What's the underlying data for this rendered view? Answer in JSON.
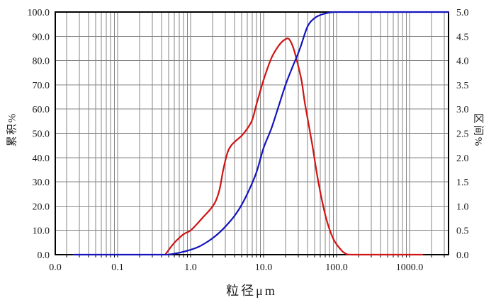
{
  "chart_data": {
    "type": "line",
    "title": "",
    "xlabel": "粒径μm",
    "ylabel_left": "累积%",
    "ylabel_right": "区间%",
    "x_scale": "log",
    "x_range": [
      0.014,
      3400
    ],
    "x_ticks": [
      {
        "label": "0.0",
        "v": 0.014
      },
      {
        "label": "0.1",
        "v": 0.1
      },
      {
        "label": "1.0",
        "v": 1
      },
      {
        "label": "10.0",
        "v": 10
      },
      {
        "label": "100.0",
        "v": 100
      },
      {
        "label": "1000.0",
        "v": 1000
      }
    ],
    "y_left_axis": {
      "min": 0,
      "max": 100,
      "tick_step": 10,
      "labels": [
        "0.0",
        "10.0",
        "20.0",
        "30.0",
        "40.0",
        "50.0",
        "60.0",
        "70.0",
        "80.0",
        "90.0",
        "100.0"
      ]
    },
    "y_right_axis": {
      "min": 0,
      "max": 5,
      "tick_step": 0.5,
      "labels": [
        "0.0",
        "0.5",
        "1.0",
        "1.5",
        "2.0",
        "2.5",
        "3.0",
        "3.5",
        "4.0",
        "4.5",
        "5.0"
      ]
    },
    "grid": true,
    "legend": "none",
    "colors": {
      "cumulative": "#1414bе",
      "cumulative_line": "#1414be",
      "frequency_line": "#d01414",
      "grid": "#858585",
      "frame": "#000000",
      "background": "#ffffff",
      "text": "#1a1a1a"
    },
    "series": [
      {
        "name": "cumulative",
        "label": "累积%",
        "axis": "left",
        "points": [
          [
            0.025,
            0
          ],
          [
            0.05,
            0
          ],
          [
            0.1,
            0
          ],
          [
            0.2,
            0
          ],
          [
            0.3,
            0
          ],
          [
            0.4,
            0
          ],
          [
            0.5,
            0.05
          ],
          [
            0.6,
            0.4
          ],
          [
            0.7,
            0.8
          ],
          [
            0.85,
            1.4
          ],
          [
            1.0,
            2.0
          ],
          [
            1.3,
            3.3
          ],
          [
            1.6,
            4.8
          ],
          [
            2.0,
            6.8
          ],
          [
            2.5,
            9.2
          ],
          [
            3.2,
            12.5
          ],
          [
            4.0,
            16
          ],
          [
            5.0,
            20.5
          ],
          [
            6.3,
            26.5
          ],
          [
            8.0,
            34
          ],
          [
            10,
            44
          ],
          [
            12.8,
            52
          ],
          [
            16,
            61
          ],
          [
            20,
            70
          ],
          [
            25,
            77.5
          ],
          [
            28,
            81
          ],
          [
            32,
            85.5
          ],
          [
            40,
            94
          ],
          [
            50,
            97.5
          ],
          [
            63,
            99
          ],
          [
            80,
            99.8
          ],
          [
            95,
            100
          ],
          [
            150,
            100
          ],
          [
            400,
            100
          ],
          [
            1200,
            100
          ],
          [
            3400,
            100
          ]
        ]
      },
      {
        "name": "frequency",
        "label": "区间%",
        "axis": "right",
        "points": [
          [
            0.45,
            0
          ],
          [
            0.55,
            0.18
          ],
          [
            0.65,
            0.3
          ],
          [
            0.8,
            0.42
          ],
          [
            1.0,
            0.5
          ],
          [
            1.2,
            0.62
          ],
          [
            1.5,
            0.78
          ],
          [
            1.9,
            0.95
          ],
          [
            2.2,
            1.1
          ],
          [
            2.5,
            1.35
          ],
          [
            2.8,
            1.75
          ],
          [
            3.2,
            2.1
          ],
          [
            3.6,
            2.25
          ],
          [
            4.2,
            2.35
          ],
          [
            5.0,
            2.45
          ],
          [
            6.0,
            2.6
          ],
          [
            7.0,
            2.78
          ],
          [
            8.0,
            3.1
          ],
          [
            10,
            3.6
          ],
          [
            12.8,
            4.05
          ],
          [
            16,
            4.3
          ],
          [
            19,
            4.42
          ],
          [
            22,
            4.45
          ],
          [
            25,
            4.3
          ],
          [
            28,
            4.05
          ],
          [
            33,
            3.6
          ],
          [
            37,
            3.1
          ],
          [
            46,
            2.3
          ],
          [
            57,
            1.45
          ],
          [
            72,
            0.75
          ],
          [
            90,
            0.33
          ],
          [
            112,
            0.12
          ],
          [
            130,
            0.03
          ],
          [
            160,
            0
          ],
          [
            400,
            0
          ],
          [
            800,
            0
          ],
          [
            1500,
            0
          ]
        ]
      }
    ]
  }
}
